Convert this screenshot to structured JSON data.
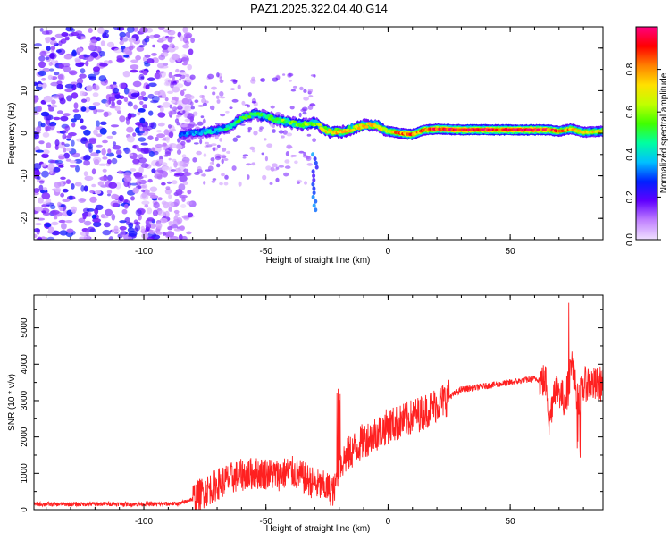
{
  "page_title": "PAZ1.2025.322.04.40.G14",
  "chart_data": [
    {
      "type": "heatmap",
      "title": "PAZ1.2025.322.04.40.G14",
      "xlabel": "Height of straight line (km)",
      "ylabel": "Frequency (Hz)",
      "xlim": [
        -145,
        88
      ],
      "ylim": [
        -25,
        25
      ],
      "xticks": [
        -100,
        -50,
        0,
        50
      ],
      "xtick_labels": [
        "-100",
        "-50",
        "0",
        "50"
      ],
      "yticks": [
        -20,
        -10,
        0,
        10,
        20
      ],
      "ytick_labels": [
        "-20",
        "-10",
        "0",
        "10",
        "20"
      ],
      "colorbar": {
        "label": "Normalized spectral amplitude",
        "range": [
          0,
          1
        ],
        "ticks": [
          0.0,
          0.2,
          0.4,
          0.6,
          0.8
        ],
        "tick_labels": [
          "0.0",
          "0.2",
          "0.4",
          "0.6",
          "0.8"
        ],
        "colors": [
          "#f0e0ff",
          "#c080ff",
          "#6000ff",
          "#0020ff",
          "#00c0ff",
          "#00ffa0",
          "#40ff00",
          "#c0ff00",
          "#ffe000",
          "#ff8000",
          "#ff0000",
          "#ff0080"
        ]
      },
      "ridge": {
        "x": [
          -85,
          -80,
          -75,
          -70,
          -65,
          -60,
          -55,
          -50,
          -45,
          -40,
          -35,
          -30,
          -25,
          -20,
          -15,
          -10,
          -5,
          0,
          5,
          10,
          15,
          20,
          30,
          40,
          50,
          60,
          65,
          70,
          75,
          80,
          88
        ],
        "freq": [
          -0.5,
          0.0,
          0.3,
          0.6,
          1.5,
          3.5,
          4.5,
          4.0,
          3.0,
          2.5,
          2.0,
          2.5,
          0.5,
          0.2,
          1.0,
          1.8,
          2.0,
          0.5,
          0.0,
          -0.3,
          0.8,
          1.0,
          0.8,
          0.8,
          0.8,
          0.8,
          0.8,
          0.5,
          1.0,
          0.2,
          0.5
        ],
        "amplitude": [
          0.3,
          0.35,
          0.4,
          0.4,
          0.45,
          0.5,
          0.5,
          0.5,
          0.55,
          0.55,
          0.6,
          0.55,
          0.7,
          0.75,
          0.7,
          0.75,
          0.7,
          0.7,
          0.8,
          0.85,
          0.8,
          0.9,
          0.95,
          0.95,
          0.95,
          0.95,
          0.9,
          0.8,
          0.75,
          0.7,
          0.7
        ]
      },
      "noise_region": {
        "x_range": [
          -145,
          -80
        ],
        "freq_range": [
          -25,
          25
        ],
        "amplitude": 0.15
      }
    },
    {
      "type": "line",
      "xlabel": "Height of straight line (km)",
      "ylabel": "SNR (10 * v/v)",
      "xlim": [
        -145,
        88
      ],
      "ylim": [
        0,
        5900
      ],
      "xticks": [
        -100,
        -50,
        0,
        50
      ],
      "xtick_labels": [
        "-100",
        "-50",
        "0",
        "50"
      ],
      "yticks": [
        0,
        1000,
        2000,
        3000,
        4000,
        5000
      ],
      "ytick_labels": [
        "0",
        "1000",
        "2000",
        "3000",
        "4000",
        "5000"
      ],
      "color": "#ff2020",
      "series": [
        {
          "x": [
            -145,
            -130,
            -115,
            -100,
            -90,
            -85,
            -80,
            -75,
            -70,
            -65,
            -60,
            -55,
            -50,
            -45,
            -40,
            -35,
            -30,
            -25,
            -22,
            -20,
            -18,
            -15,
            -10,
            -5,
            0,
            5,
            10,
            15,
            20,
            25,
            30,
            40,
            50,
            55,
            60,
            62,
            65,
            66,
            68,
            70,
            72,
            74,
            75,
            76,
            78,
            80,
            82,
            85,
            88
          ],
          "y": [
            150,
            150,
            160,
            150,
            160,
            170,
            300,
            500,
            700,
            850,
            950,
            1000,
            1000,
            950,
            1050,
            900,
            700,
            600,
            500,
            1200,
            1400,
            1600,
            1900,
            2100,
            2300,
            2400,
            2550,
            2700,
            2900,
            3100,
            3300,
            3400,
            3500,
            3550,
            3600,
            3580,
            3500,
            2300,
            3400,
            3300,
            3000,
            3400,
            4200,
            3600,
            3000,
            3400,
            3500,
            3400,
            3500
          ]
        }
      ]
    }
  ]
}
